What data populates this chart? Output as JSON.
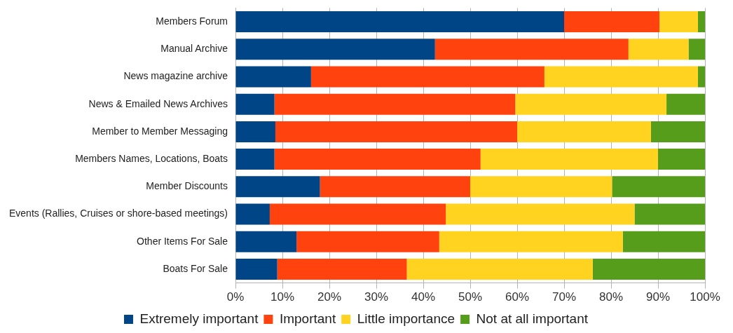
{
  "chart_data": {
    "type": "bar",
    "orientation": "horizontal",
    "stacked": true,
    "categories": [
      "Members Forum",
      "Manual Archive",
      "News magazine archive",
      "News & Emailed News Archives",
      "Member to Member Messaging",
      "Members Names, Locations, Boats",
      "Member Discounts",
      "Events (Rallies, Cruises or shore-based meetings)",
      "Other Items For Sale",
      "Boats For Sale"
    ],
    "series": [
      {
        "name": "Extremely important",
        "color": "#004586",
        "values": [
          70,
          42.5,
          16.1,
          8.3,
          8.5,
          8.3,
          18,
          7.3,
          13,
          8.9
        ]
      },
      {
        "name": "Important",
        "color": "#ff420e",
        "values": [
          20.3,
          41.2,
          49.7,
          51.3,
          51.5,
          43.9,
          32,
          37.5,
          30.4,
          27.6
        ]
      },
      {
        "name": "Little importance",
        "color": "#ffd320",
        "values": [
          8.2,
          12.8,
          32.7,
          32.2,
          28.5,
          37.8,
          30.2,
          40.2,
          39.1,
          39.6
        ]
      },
      {
        "name": "Not at all important",
        "color": "#579d1c",
        "values": [
          1.5,
          3.5,
          1.5,
          8.2,
          11.5,
          10,
          19.8,
          15,
          17.5,
          23.9
        ]
      }
    ],
    "xlim": [
      0,
      100
    ],
    "xticks": [
      {
        "value": 0,
        "label": "0%"
      },
      {
        "value": 10,
        "label": "10%"
      },
      {
        "value": 20,
        "label": "20%"
      },
      {
        "value": 30,
        "label": "30%"
      },
      {
        "value": 40,
        "label": "40%"
      },
      {
        "value": 50,
        "label": "50%"
      },
      {
        "value": 60,
        "label": "60%"
      },
      {
        "value": 70,
        "label": "70%"
      },
      {
        "value": 80,
        "label": "80%"
      },
      {
        "value": 90,
        "label": "90%"
      },
      {
        "value": 100,
        "label": "100%"
      }
    ],
    "grid": "x",
    "legend": "bottom"
  }
}
